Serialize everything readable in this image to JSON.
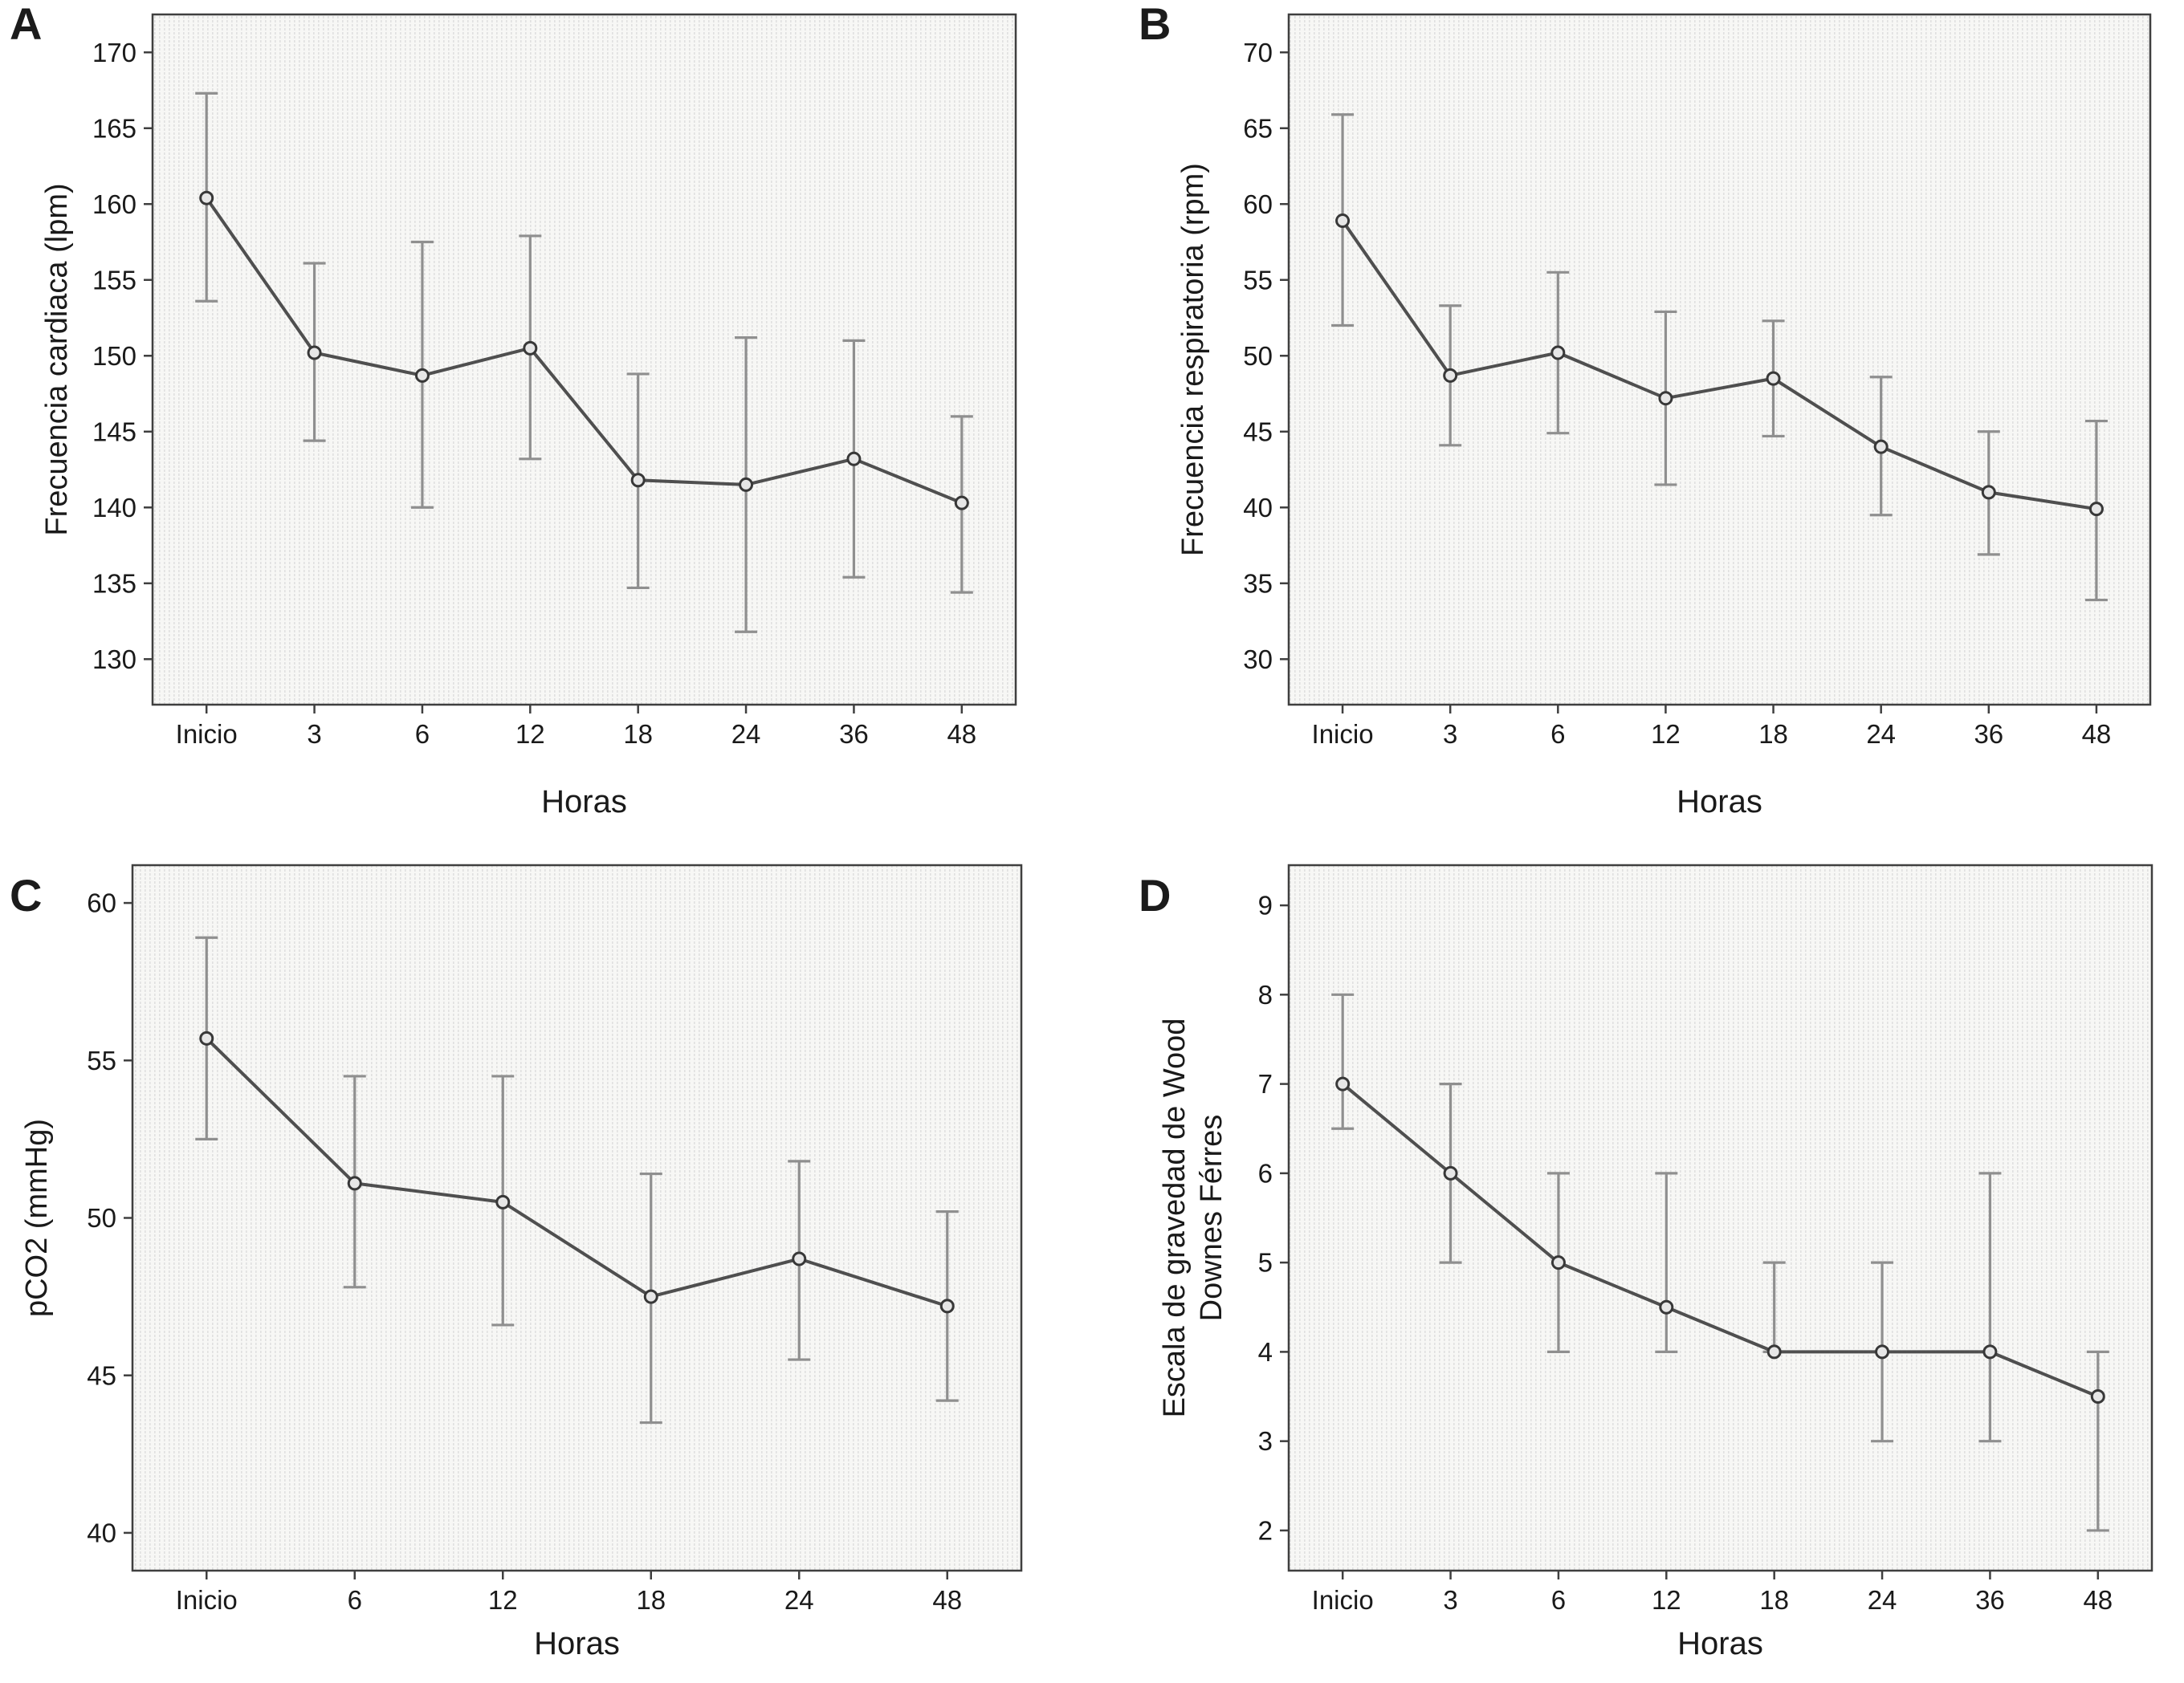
{
  "style": {
    "line_color": "#4f4f4f",
    "error_color": "#8f8f8f",
    "frame_color": "#3f3f3f",
    "marker_fill": "#e6e6e6",
    "marker_stroke": "#383838",
    "stripe_color": "#e0e0e0",
    "plot_bg": "#f7f7f5",
    "text_color": "#1a1a1a"
  },
  "chart_data": [
    {
      "panel": "A",
      "type": "line",
      "title": "",
      "xlabel": "Horas",
      "ylabel": "Frecuencia cardiaca (lpm)",
      "categories": [
        "Inicio",
        "3",
        "6",
        "12",
        "18",
        "24",
        "36",
        "48"
      ],
      "values": [
        160.4,
        150.2,
        148.7,
        150.5,
        141.8,
        141.5,
        143.2,
        140.3
      ],
      "err_low": [
        153.6,
        144.4,
        140.0,
        143.2,
        134.7,
        131.8,
        135.4,
        134.4
      ],
      "err_high": [
        167.3,
        156.1,
        157.5,
        157.9,
        148.8,
        151.2,
        151.0,
        146.0
      ],
      "yticks": [
        130,
        135,
        140,
        145,
        150,
        155,
        160,
        165,
        170
      ],
      "ylim": [
        127,
        172.5
      ],
      "grid": "off",
      "legend": "none"
    },
    {
      "panel": "B",
      "type": "line",
      "title": "",
      "xlabel": "Horas",
      "ylabel": "Frecuencia respiratoria (rpm)",
      "categories": [
        "Inicio",
        "3",
        "6",
        "12",
        "18",
        "24",
        "36",
        "48"
      ],
      "values": [
        58.9,
        48.7,
        50.2,
        47.2,
        48.5,
        44.0,
        41.0,
        39.9
      ],
      "err_low": [
        52.0,
        44.1,
        44.9,
        41.5,
        44.7,
        39.5,
        36.9,
        33.9
      ],
      "err_high": [
        65.9,
        53.3,
        55.5,
        52.9,
        52.3,
        48.6,
        45.0,
        45.7
      ],
      "yticks": [
        30,
        35,
        40,
        45,
        50,
        55,
        60,
        65,
        70
      ],
      "ylim": [
        27,
        72.5
      ],
      "grid": "off",
      "legend": "none"
    },
    {
      "panel": "C",
      "type": "line",
      "title": "",
      "xlabel": "Horas",
      "ylabel": "pCO2 (mmHg)",
      "categories": [
        "Inicio",
        "6",
        "12",
        "18",
        "24",
        "48"
      ],
      "values": [
        55.7,
        51.1,
        50.5,
        47.5,
        48.7,
        47.2
      ],
      "err_low": [
        52.5,
        47.8,
        46.6,
        43.5,
        45.5,
        44.2
      ],
      "err_high": [
        58.9,
        54.5,
        54.5,
        51.4,
        51.8,
        50.2
      ],
      "yticks": [
        40,
        45,
        50,
        55,
        60
      ],
      "ylim": [
        38.8,
        61.2
      ],
      "grid": "off",
      "legend": "none"
    },
    {
      "panel": "D",
      "type": "line",
      "title": "",
      "xlabel": "Horas",
      "ylabel": "Escala de gravedad de Wood\nDownes Férres",
      "categories": [
        "Inicio",
        "3",
        "6",
        "12",
        "18",
        "24",
        "36",
        "48"
      ],
      "values": [
        7.0,
        6.0,
        5.0,
        4.5,
        4.0,
        4.0,
        4.0,
        3.5
      ],
      "err_low": [
        6.5,
        5.0,
        4.0,
        4.0,
        4.0,
        3.0,
        3.0,
        2.0
      ],
      "err_high": [
        8.0,
        7.0,
        6.0,
        6.0,
        5.0,
        5.0,
        6.0,
        4.0
      ],
      "yticks": [
        2,
        3,
        4,
        5,
        6,
        7,
        8,
        9
      ],
      "ylim": [
        1.55,
        9.45
      ],
      "grid": "off",
      "legend": "none"
    }
  ]
}
